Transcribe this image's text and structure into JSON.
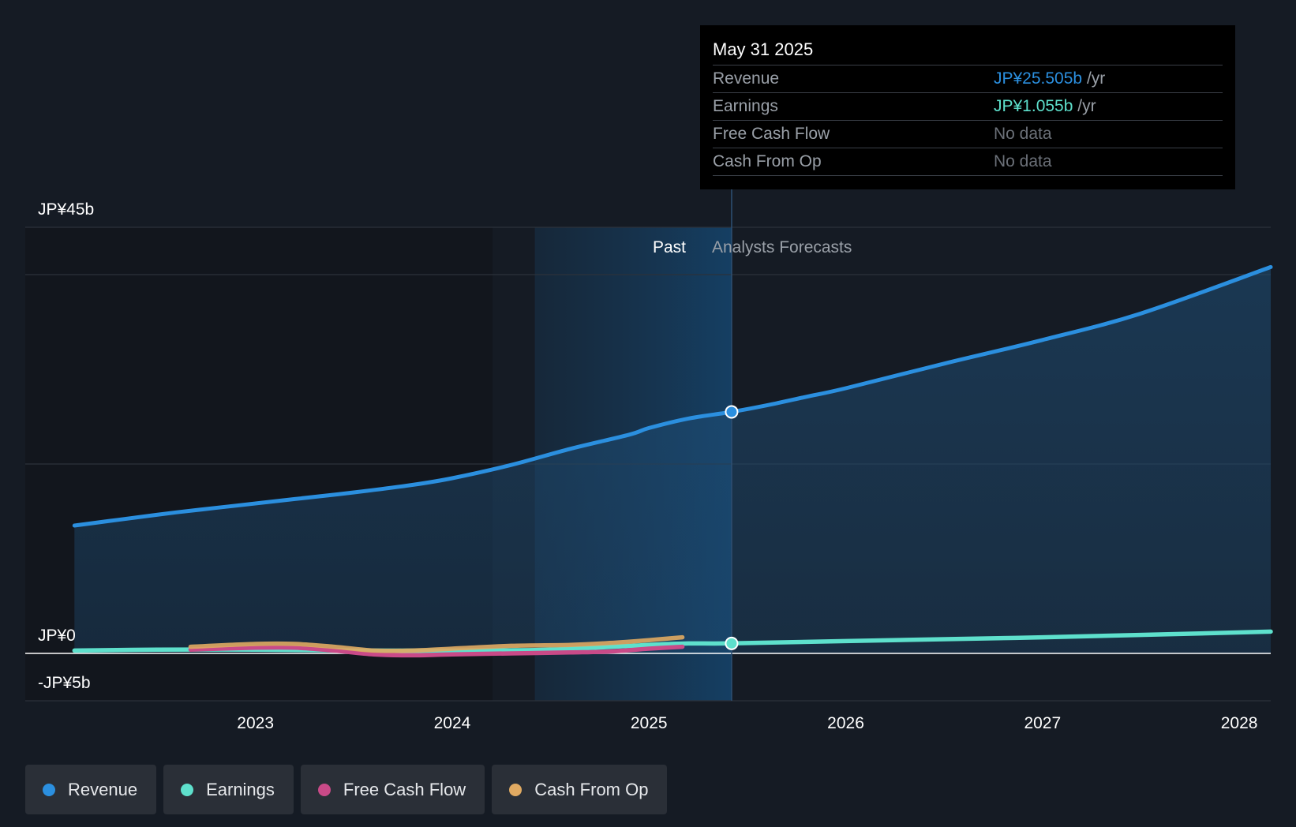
{
  "chart_data": {
    "type": "line",
    "title": "",
    "xlabel": "",
    "ylabel": "",
    "y_axis_labels": [
      "JP¥45b",
      "JP¥0",
      "-JP¥5b"
    ],
    "x_ticks": [
      "2023",
      "2024",
      "2025",
      "2026",
      "2027",
      "2028"
    ],
    "x_tick_values": [
      2023.0,
      2024.0,
      2025.0,
      2026.0,
      2027.0,
      2028.0
    ],
    "xlim": [
      2021.83,
      2028.16
    ],
    "ylim": [
      -5,
      45
    ],
    "past_label": "Past",
    "forecast_label": "Analysts Forecasts",
    "past_region_start": 2024.42,
    "forecast_start": 2025.42,
    "grid": true,
    "legend_position": "bottom-left",
    "series": [
      {
        "name": "Revenue",
        "color": "#2b8fdf",
        "x": [
          2022.08,
          2022.3,
          2022.6,
          2022.9,
          2023.2,
          2023.5,
          2023.8,
          2024.0,
          2024.3,
          2024.6,
          2024.9,
          2025.0,
          2025.2,
          2025.42,
          2025.6,
          2025.8,
          2026.0,
          2026.5,
          2027.0,
          2027.5,
          2028.16
        ],
        "y": [
          13.5,
          14.1,
          14.9,
          15.6,
          16.3,
          17.0,
          17.8,
          18.5,
          19.9,
          21.6,
          23.1,
          23.8,
          24.8,
          25.5,
          26.2,
          27.1,
          28.0,
          30.6,
          33.1,
          35.9,
          40.8
        ]
      },
      {
        "name": "Earnings",
        "color": "#5ee0cc",
        "x": [
          2022.08,
          2022.5,
          2023.0,
          2023.5,
          2024.0,
          2024.5,
          2025.0,
          2025.2,
          2025.42,
          2026.0,
          2027.0,
          2028.16
        ],
        "y": [
          0.3,
          0.4,
          0.4,
          0.3,
          0.3,
          0.4,
          0.9,
          1.05,
          1.055,
          1.3,
          1.7,
          2.3
        ]
      },
      {
        "name": "Free Cash Flow",
        "color": "#c94a88",
        "x": [
          2022.67,
          2023.0,
          2023.2,
          2023.4,
          2023.6,
          2023.8,
          2024.0,
          2024.3,
          2024.6,
          2024.8,
          2025.0,
          2025.17
        ],
        "y": [
          0.4,
          0.6,
          0.6,
          0.3,
          -0.1,
          -0.2,
          -0.1,
          0.0,
          0.1,
          0.2,
          0.5,
          0.7
        ]
      },
      {
        "name": "Cash From Op",
        "color": "#e0aa62",
        "x": [
          2022.67,
          2023.0,
          2023.2,
          2023.4,
          2023.6,
          2023.8,
          2024.0,
          2024.3,
          2024.6,
          2024.8,
          2025.0,
          2025.17
        ],
        "y": [
          0.7,
          1.0,
          1.0,
          0.7,
          0.3,
          0.3,
          0.5,
          0.8,
          0.9,
          1.1,
          1.4,
          1.7
        ]
      }
    ],
    "highlight_points": [
      {
        "series": "Revenue",
        "x": 2025.42,
        "y": 25.505
      },
      {
        "series": "Earnings",
        "x": 2025.42,
        "y": 1.055
      }
    ]
  },
  "tooltip": {
    "date": "May 31 2025",
    "rows": [
      {
        "label": "Revenue",
        "value": "JP¥25.505b",
        "unit": "/yr",
        "color": "#2b8fdf"
      },
      {
        "label": "Earnings",
        "value": "JP¥1.055b",
        "unit": "/yr",
        "color": "#5ee0cc"
      },
      {
        "label": "Free Cash Flow",
        "value": "No data",
        "unit": ""
      },
      {
        "label": "Cash From Op",
        "value": "No data",
        "unit": ""
      }
    ]
  },
  "legend": [
    {
      "label": "Revenue",
      "color": "#2b8fdf"
    },
    {
      "label": "Earnings",
      "color": "#5ee0cc"
    },
    {
      "label": "Free Cash Flow",
      "color": "#c94a88"
    },
    {
      "label": "Cash From Op",
      "color": "#e0aa62"
    }
  ]
}
